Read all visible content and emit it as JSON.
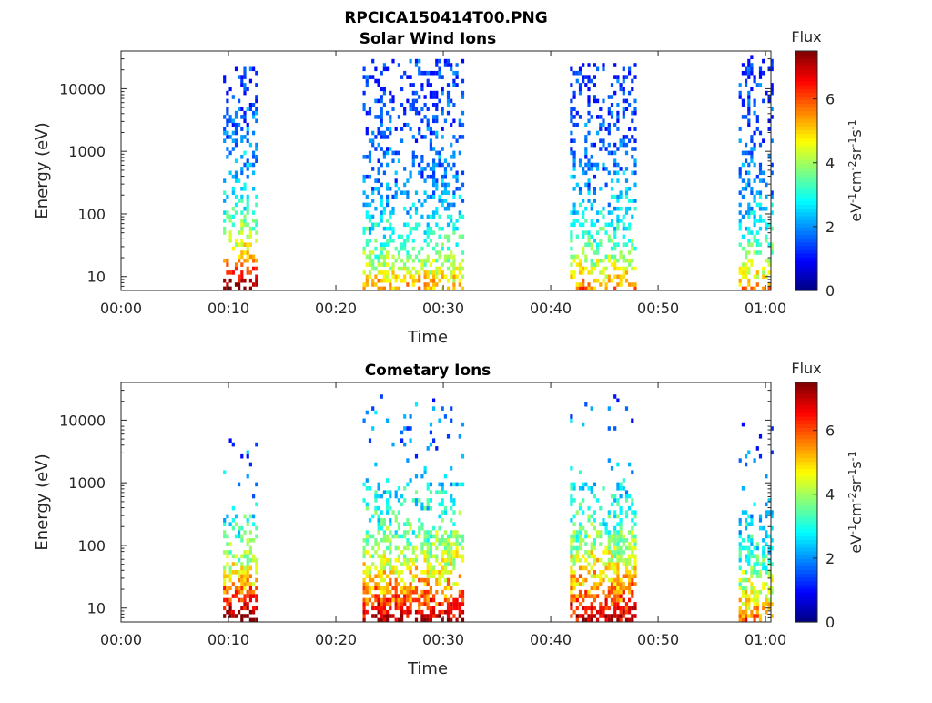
{
  "figure": {
    "title": "RPCICA150414T00.PNG"
  },
  "chart_data": [
    {
      "type": "heatmap",
      "title": "Solar Wind Ions",
      "xlabel": "Time",
      "ylabel": "Energy (eV)",
      "x_tick_labels": [
        "00:00",
        "00:10",
        "00:20",
        "00:30",
        "00:40",
        "00:50",
        "01:00"
      ],
      "x_tick_minutes": [
        0,
        10,
        20,
        30,
        40,
        50,
        60
      ],
      "xlim_minutes": [
        0,
        60.5
      ],
      "y_scale": "log",
      "ylim": [
        6,
        40000
      ],
      "y_tick_labels": [
        "10",
        "100",
        "1000",
        "10000"
      ],
      "y_tick_values": [
        10,
        100,
        1000,
        10000
      ],
      "colorbar": {
        "title": "Flux",
        "label": "eV-1cm-2sr-1s-1",
        "range": [
          0,
          7.5
        ],
        "tick_labels": [
          "0",
          "2",
          "4",
          "6"
        ],
        "tick_values": [
          0,
          2,
          4,
          6
        ],
        "colormap": "jet"
      },
      "bursts": [
        {
          "start_min": 9.5,
          "end_min": 12.5,
          "peak_flux": 7.0,
          "peak_energy_ev": 8,
          "max_energy_ev": 22000
        },
        {
          "start_min": 22.5,
          "end_min": 31.8,
          "peak_flux": 4.5,
          "peak_energy_ev": 8,
          "max_energy_ev": 30000
        },
        {
          "start_min": 41.8,
          "end_min": 47.8,
          "peak_flux": 4.8,
          "peak_energy_ev": 8,
          "max_energy_ev": 26000
        },
        {
          "start_min": 57.5,
          "end_min": 60.5,
          "peak_flux": 4.5,
          "peak_energy_ev": 8,
          "max_energy_ev": 35000
        }
      ]
    },
    {
      "type": "heatmap",
      "title": "Cometary Ions",
      "xlabel": "Time",
      "ylabel": "Energy (eV)",
      "x_tick_labels": [
        "00:00",
        "00:10",
        "00:20",
        "00:30",
        "00:40",
        "00:50",
        "01:00"
      ],
      "x_tick_minutes": [
        0,
        10,
        20,
        30,
        40,
        50,
        60
      ],
      "xlim_minutes": [
        0,
        60.5
      ],
      "y_scale": "log",
      "ylim": [
        6,
        40000
      ],
      "y_tick_labels": [
        "10",
        "100",
        "1000",
        "10000"
      ],
      "y_tick_values": [
        10,
        100,
        1000,
        10000
      ],
      "colorbar": {
        "title": "Flux",
        "label": "eV-1cm-2sr-1s-1",
        "range": [
          0,
          7.5
        ],
        "tick_labels": [
          "0",
          "2",
          "4",
          "6"
        ],
        "tick_values": [
          0,
          2,
          4,
          6
        ],
        "colormap": "jet"
      },
      "bursts": [
        {
          "start_min": 9.5,
          "end_min": 12.5,
          "peak_flux": 7.2,
          "peak_energy_ev": 8,
          "max_energy_ev": 5000
        },
        {
          "start_min": 22.5,
          "end_min": 31.8,
          "peak_flux": 6.5,
          "peak_energy_ev": 8,
          "max_energy_ev": 28000
        },
        {
          "start_min": 41.8,
          "end_min": 47.8,
          "peak_flux": 6.5,
          "peak_energy_ev": 8,
          "max_energy_ev": 30000
        },
        {
          "start_min": 57.5,
          "end_min": 60.5,
          "peak_flux": 5.0,
          "peak_energy_ev": 8,
          "max_energy_ev": 9000
        }
      ]
    }
  ]
}
